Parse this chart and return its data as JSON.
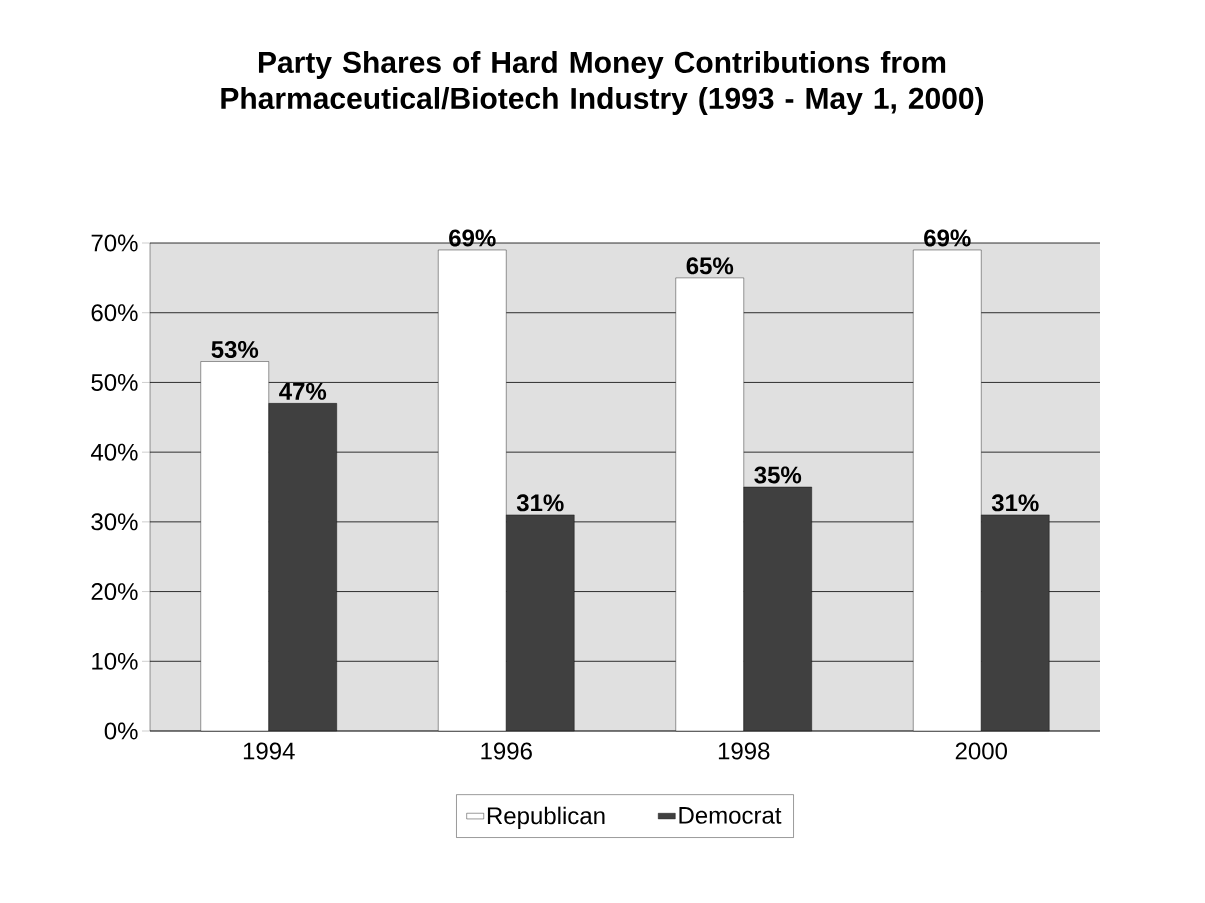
{
  "chart_data": {
    "type": "bar",
    "title": "Party Shares of Hard Money Contributions from Pharmaceutical/Biotech Industry (1993 - May 1, 2000)",
    "categories": [
      "1994",
      "1996",
      "1998",
      "2000"
    ],
    "series": [
      {
        "name": "Republican",
        "color": "#ffffff",
        "values": [
          53,
          69,
          65,
          69
        ],
        "value_labels": [
          "53%",
          "69%",
          "65%",
          "69%"
        ]
      },
      {
        "name": "Democrat",
        "color": "#404040",
        "values": [
          47,
          31,
          35,
          31
        ],
        "value_labels": [
          "47%",
          "31%",
          "35%",
          "31%"
        ]
      }
    ],
    "ylim": [
      0,
      70
    ],
    "yticks": [
      {
        "value": 0,
        "label": "0%"
      },
      {
        "value": 10,
        "label": "10%"
      },
      {
        "value": 20,
        "label": "20%"
      },
      {
        "value": 30,
        "label": "30%"
      },
      {
        "value": 40,
        "label": "40%"
      },
      {
        "value": 50,
        "label": "50%"
      },
      {
        "value": 60,
        "label": "60%"
      },
      {
        "value": 70,
        "label": "70%"
      }
    ],
    "grid": "y",
    "legend": "bottom"
  }
}
